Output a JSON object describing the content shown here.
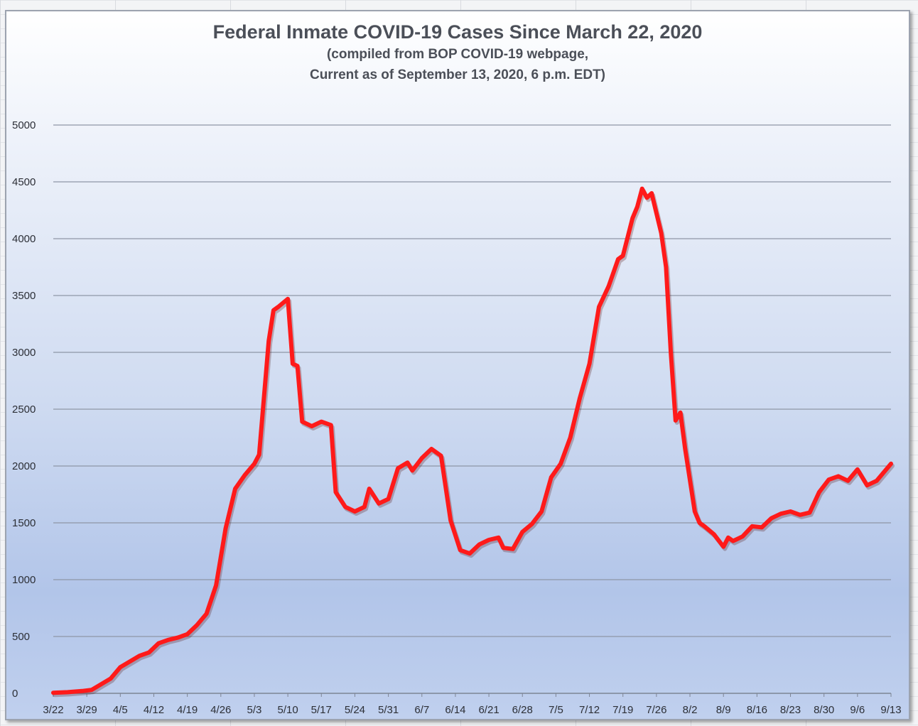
{
  "chart_data": {
    "type": "line",
    "title": "Federal Inmate COVID-19 Cases Since March 22, 2020",
    "subtitle_lines": [
      "(compiled from BOP COVID-19 webpage,",
      "Current as of September 13, 2020, 6 p.m. EDT)"
    ],
    "xlabel": "",
    "ylabel": "",
    "ylim": [
      0,
      5000
    ],
    "yticks": [
      "0",
      "500",
      "1000",
      "1500",
      "2000",
      "2500",
      "3000",
      "3500",
      "4000",
      "4500",
      "5000"
    ],
    "ytick_values": [
      0,
      500,
      1000,
      1500,
      2000,
      2500,
      3000,
      3500,
      4000,
      4500,
      5000
    ],
    "xticks": [
      "3/22",
      "3/29",
      "4/5",
      "4/12",
      "4/19",
      "4/26",
      "5/3",
      "5/10",
      "5/17",
      "5/24",
      "5/31",
      "6/7",
      "6/14",
      "6/21",
      "6/28",
      "7/5",
      "7/12",
      "7/19",
      "7/26",
      "8/2",
      "8/9",
      "8/16",
      "8/23",
      "8/30",
      "9/6",
      "9/13"
    ],
    "grid": true,
    "legend": "none",
    "line_color": "#ff1a1a",
    "series": [
      {
        "x": [
          "3/22",
          "3/25",
          "3/28",
          "3/30",
          "4/1",
          "4/3",
          "4/5",
          "4/7",
          "4/9",
          "4/11",
          "4/13",
          "4/15",
          "4/17",
          "4/19",
          "4/21",
          "4/23",
          "4/25",
          "4/27",
          "4/29",
          "5/1",
          "5/3",
          "5/4",
          "5/6",
          "5/7",
          "5/8",
          "5/10",
          "5/11",
          "5/12",
          "5/13",
          "5/15",
          "5/17",
          "5/19",
          "5/20",
          "5/22",
          "5/24",
          "5/26",
          "5/27",
          "5/29",
          "5/30",
          "5/31",
          "6/2",
          "6/4",
          "6/5",
          "6/7",
          "6/9",
          "6/11",
          "6/13",
          "6/15",
          "6/17",
          "6/19",
          "6/21",
          "6/23",
          "6/24",
          "6/26",
          "6/28",
          "6/30",
          "7/2",
          "7/4",
          "7/6",
          "7/8",
          "7/10",
          "7/12",
          "7/14",
          "7/16",
          "7/18",
          "7/19",
          "7/21",
          "7/22",
          "7/23",
          "7/24",
          "7/25",
          "7/27",
          "7/28",
          "7/29",
          "7/30",
          "7/31",
          "8/1",
          "8/3",
          "8/4",
          "8/5",
          "8/7",
          "8/9",
          "8/10",
          "8/11",
          "8/13",
          "8/15",
          "8/17",
          "8/19",
          "8/21",
          "8/23",
          "8/25",
          "8/27",
          "8/29",
          "8/31",
          "9/2",
          "9/4",
          "9/6",
          "9/8",
          "9/10",
          "9/13"
        ],
        "values": [
          5,
          10,
          20,
          30,
          80,
          130,
          230,
          280,
          330,
          360,
          440,
          470,
          490,
          520,
          600,
          700,
          950,
          1450,
          1800,
          1920,
          2020,
          2100,
          3100,
          3370,
          3400,
          3470,
          2900,
          2880,
          2390,
          2350,
          2390,
          2360,
          1770,
          1640,
          1600,
          1640,
          1800,
          1670,
          1690,
          1710,
          1980,
          2030,
          1960,
          2070,
          2150,
          2090,
          1520,
          1260,
          1230,
          1310,
          1350,
          1370,
          1280,
          1270,
          1420,
          1490,
          1600,
          1900,
          2020,
          2250,
          2600,
          2900,
          3400,
          3580,
          3820,
          3850,
          4180,
          4280,
          4440,
          4360,
          4400,
          4050,
          3750,
          3000,
          2400,
          2470,
          2150,
          1600,
          1500,
          1470,
          1400,
          1290,
          1370,
          1340,
          1380,
          1470,
          1460,
          1540,
          1580,
          1600,
          1570,
          1590,
          1770,
          1880,
          1910,
          1870,
          1970,
          1830,
          1870,
          2020
        ]
      }
    ]
  }
}
